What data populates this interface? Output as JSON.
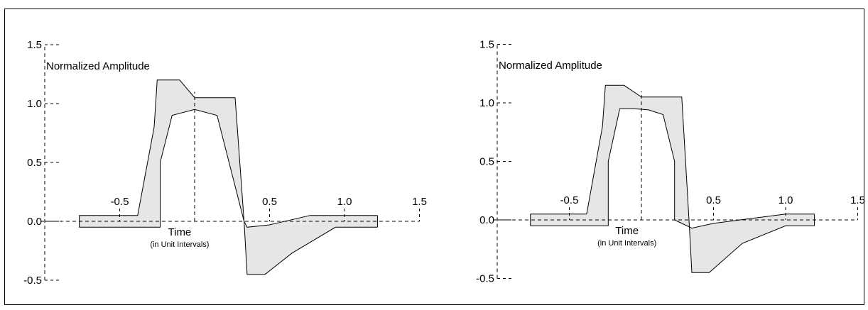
{
  "chart_data": [
    {
      "type": "mask-diagram",
      "ylabel": "Normalized Amplitude",
      "xlabel": "Time",
      "xlabel_sub": "(in Unit Intervals)",
      "y_ticks": [
        "1.5",
        "1.0",
        "0.5",
        "0.0",
        "-0.5"
      ],
      "y_tick_values": [
        1.5,
        1.0,
        0.5,
        0.0,
        -0.5
      ],
      "x_ticks": [
        "-0.5",
        "0.5",
        "1.0",
        "1.5"
      ],
      "x_tick_values": [
        -0.5,
        0.5,
        1.0,
        1.5
      ],
      "xlim": [
        -1.0,
        1.5
      ],
      "ylim": [
        -0.5,
        1.5
      ],
      "upper_mask": [
        [
          -0.77,
          0.05
        ],
        [
          -0.38,
          0.05
        ],
        [
          -0.27,
          0.8
        ],
        [
          -0.25,
          1.2
        ],
        [
          -0.1,
          1.2
        ],
        [
          0.0,
          1.05
        ],
        [
          0.27,
          1.05
        ],
        [
          0.33,
          0.0
        ],
        [
          0.35,
          -0.45
        ],
        [
          0.47,
          -0.45
        ],
        [
          0.65,
          -0.27
        ],
        [
          0.94,
          -0.05
        ],
        [
          1.22,
          -0.05
        ]
      ],
      "lower_mask": [
        [
          -0.77,
          -0.05
        ],
        [
          -0.23,
          -0.05
        ],
        [
          -0.23,
          0.5
        ],
        [
          -0.15,
          0.9
        ],
        [
          0.0,
          0.95
        ],
        [
          0.15,
          0.9
        ],
        [
          0.33,
          0.0
        ],
        [
          0.35,
          -0.05
        ],
        [
          0.5,
          -0.03
        ],
        [
          0.77,
          0.05
        ],
        [
          1.22,
          0.05
        ]
      ]
    },
    {
      "type": "mask-diagram",
      "ylabel": "Normalized Amplitude",
      "xlabel": "Time",
      "xlabel_sub": "(in Unit Intervals)",
      "y_ticks": [
        "1.5",
        "1.0",
        "0.5",
        "0.0",
        "-0.5"
      ],
      "y_tick_values": [
        1.5,
        1.0,
        0.5,
        0.0,
        -0.5
      ],
      "x_ticks": [
        "-0.5",
        "0.5",
        "1.0",
        "1.5"
      ],
      "x_tick_values": [
        -0.5,
        0.5,
        1.0,
        1.5
      ],
      "xlim": [
        -1.0,
        1.5
      ],
      "ylim": [
        -0.5,
        1.5
      ],
      "upper_mask": [
        [
          -0.77,
          0.05
        ],
        [
          -0.38,
          0.05
        ],
        [
          -0.27,
          0.8
        ],
        [
          -0.25,
          1.15
        ],
        [
          -0.12,
          1.15
        ],
        [
          0.0,
          1.05
        ],
        [
          0.28,
          1.05
        ],
        [
          0.33,
          0.0
        ],
        [
          0.35,
          -0.45
        ],
        [
          0.47,
          -0.45
        ],
        [
          0.7,
          -0.2
        ],
        [
          1.0,
          -0.05
        ],
        [
          1.2,
          -0.05
        ]
      ],
      "lower_mask": [
        [
          -0.77,
          -0.05
        ],
        [
          -0.23,
          -0.05
        ],
        [
          -0.23,
          0.5
        ],
        [
          -0.15,
          0.95
        ],
        [
          -0.05,
          0.95
        ],
        [
          0.05,
          0.94
        ],
        [
          0.15,
          0.9
        ],
        [
          0.23,
          0.5
        ],
        [
          0.23,
          0.0
        ],
        [
          0.35,
          -0.07
        ],
        [
          0.5,
          -0.03
        ],
        [
          1.0,
          0.05
        ],
        [
          1.2,
          0.05
        ]
      ]
    }
  ]
}
